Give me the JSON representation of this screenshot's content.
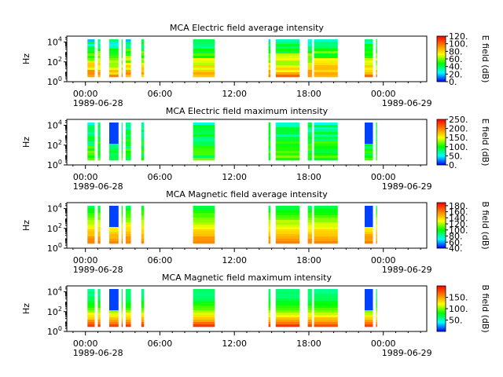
{
  "colors": {
    "background": "#ffffff",
    "axis": "#000000"
  },
  "colormap": [
    "#ff0000",
    "#ff8000",
    "#ffff00",
    "#00ff00",
    "#00ffff",
    "#0000ff"
  ],
  "chart_data": [
    {
      "type": "heatmap",
      "title": "MCA  Electric field average intensity",
      "ylabel": "Hz",
      "colorbar_label": "E field (dB)",
      "y_scale": "log",
      "y_tick_labels": [
        "10^0",
        "10^2",
        "10^4"
      ],
      "x_tick_labels": [
        "00:00",
        "06:00",
        "12:00",
        "18:00",
        "00:00"
      ],
      "x_date_start": "1989-06-28",
      "x_date_end": "1989-06-29",
      "colorbar_ticks": [
        "0.",
        "20.",
        "40.",
        "60.",
        "80.",
        "100.",
        "120."
      ],
      "clim": [
        0,
        120
      ],
      "segments": [
        {
          "start": "1989-06-28 00:10",
          "end": "1989-06-28 00:45"
        },
        {
          "start": "1989-06-28 01:00",
          "end": "1989-06-28 01:12"
        },
        {
          "start": "1989-06-28 01:55",
          "end": "1989-06-28 02:40"
        },
        {
          "start": "1989-06-28 02:55",
          "end": "1989-06-28 03:00"
        },
        {
          "start": "1989-06-28 03:15",
          "end": "1989-06-28 03:40"
        },
        {
          "start": "1989-06-28 04:30",
          "end": "1989-06-28 04:43"
        },
        {
          "start": "1989-06-28 08:40",
          "end": "1989-06-28 10:25"
        },
        {
          "start": "1989-06-28 14:45",
          "end": "1989-06-28 14:55"
        },
        {
          "start": "1989-06-28 15:20",
          "end": "1989-06-28 17:15"
        },
        {
          "start": "1989-06-28 17:55",
          "end": "1989-06-28 18:15"
        },
        {
          "start": "1989-06-28 18:25",
          "end": "1989-06-28 20:20"
        },
        {
          "start": "1989-06-28 22:30",
          "end": "1989-06-28 23:10"
        },
        {
          "start": "1989-06-28 23:25",
          "end": "1989-06-28 23:30"
        }
      ]
    },
    {
      "type": "heatmap",
      "title": "MCA  Electric field maximum intensity",
      "ylabel": "Hz",
      "colorbar_label": "E field (dB)",
      "y_scale": "log",
      "y_tick_labels": [
        "10^0",
        "10^2",
        "10^4"
      ],
      "x_tick_labels": [
        "00:00",
        "06:00",
        "12:00",
        "18:00",
        "00:00"
      ],
      "x_date_start": "1989-06-28",
      "x_date_end": "1989-06-29",
      "colorbar_ticks": [
        "0.",
        "50.",
        "100.",
        "150.",
        "200.",
        "250."
      ],
      "clim": [
        0,
        250
      ],
      "segments": [
        {
          "start": "1989-06-28 00:10",
          "end": "1989-06-28 00:45"
        },
        {
          "start": "1989-06-28 01:00",
          "end": "1989-06-28 01:12"
        },
        {
          "start": "1989-06-28 01:55",
          "end": "1989-06-28 02:40"
        },
        {
          "start": "1989-06-28 02:55",
          "end": "1989-06-28 03:00"
        },
        {
          "start": "1989-06-28 03:15",
          "end": "1989-06-28 03:40"
        },
        {
          "start": "1989-06-28 04:30",
          "end": "1989-06-28 04:43"
        },
        {
          "start": "1989-06-28 08:40",
          "end": "1989-06-28 10:25"
        },
        {
          "start": "1989-06-28 14:45",
          "end": "1989-06-28 14:55"
        },
        {
          "start": "1989-06-28 15:20",
          "end": "1989-06-28 17:15"
        },
        {
          "start": "1989-06-28 17:55",
          "end": "1989-06-28 18:15"
        },
        {
          "start": "1989-06-28 18:25",
          "end": "1989-06-28 20:20"
        },
        {
          "start": "1989-06-28 22:30",
          "end": "1989-06-28 23:10"
        },
        {
          "start": "1989-06-28 23:25",
          "end": "1989-06-28 23:30"
        }
      ]
    },
    {
      "type": "heatmap",
      "title": "MCA  Magnetic field average intensity",
      "ylabel": "Hz",
      "colorbar_label": "B field (dB)",
      "y_scale": "log",
      "y_tick_labels": [
        "10^0",
        "10^2",
        "10^4"
      ],
      "x_tick_labels": [
        "00:00",
        "06:00",
        "12:00",
        "18:00",
        "00:00"
      ],
      "x_date_start": "1989-06-28",
      "x_date_end": "1989-06-29",
      "colorbar_ticks": [
        "40.",
        "60.",
        "80.",
        "100.",
        "120.",
        "140.",
        "160.",
        "180."
      ],
      "clim": [
        40,
        190
      ],
      "segments": [
        {
          "start": "1989-06-28 00:10",
          "end": "1989-06-28 00:45"
        },
        {
          "start": "1989-06-28 01:00",
          "end": "1989-06-28 01:12"
        },
        {
          "start": "1989-06-28 01:55",
          "end": "1989-06-28 02:40"
        },
        {
          "start": "1989-06-28 02:55",
          "end": "1989-06-28 03:00"
        },
        {
          "start": "1989-06-28 03:15",
          "end": "1989-06-28 03:40"
        },
        {
          "start": "1989-06-28 04:30",
          "end": "1989-06-28 04:43"
        },
        {
          "start": "1989-06-28 08:40",
          "end": "1989-06-28 10:25"
        },
        {
          "start": "1989-06-28 14:45",
          "end": "1989-06-28 14:55"
        },
        {
          "start": "1989-06-28 15:20",
          "end": "1989-06-28 17:15"
        },
        {
          "start": "1989-06-28 17:55",
          "end": "1989-06-28 18:15"
        },
        {
          "start": "1989-06-28 18:25",
          "end": "1989-06-28 20:20"
        },
        {
          "start": "1989-06-28 22:30",
          "end": "1989-06-28 23:10"
        },
        {
          "start": "1989-06-28 23:25",
          "end": "1989-06-28 23:30"
        }
      ]
    },
    {
      "type": "heatmap",
      "title": "MCA  Magnetic field maximum intensity",
      "ylabel": "Hz",
      "colorbar_label": "B field (dB)",
      "y_scale": "log",
      "y_tick_labels": [
        "10^0",
        "10^2",
        "10^4"
      ],
      "x_tick_labels": [
        "00:00",
        "06:00",
        "12:00",
        "18:00",
        "00:00"
      ],
      "x_date_start": "1989-06-28",
      "x_date_end": "1989-06-29",
      "colorbar_ticks": [
        "50.",
        "100.",
        "150."
      ],
      "clim": [
        0,
        200
      ],
      "segments": [
        {
          "start": "1989-06-28 00:10",
          "end": "1989-06-28 00:45"
        },
        {
          "start": "1989-06-28 01:00",
          "end": "1989-06-28 01:12"
        },
        {
          "start": "1989-06-28 01:55",
          "end": "1989-06-28 02:40"
        },
        {
          "start": "1989-06-28 02:55",
          "end": "1989-06-28 03:00"
        },
        {
          "start": "1989-06-28 03:15",
          "end": "1989-06-28 03:40"
        },
        {
          "start": "1989-06-28 04:30",
          "end": "1989-06-28 04:43"
        },
        {
          "start": "1989-06-28 08:40",
          "end": "1989-06-28 10:25"
        },
        {
          "start": "1989-06-28 14:45",
          "end": "1989-06-28 14:55"
        },
        {
          "start": "1989-06-28 15:20",
          "end": "1989-06-28 17:15"
        },
        {
          "start": "1989-06-28 17:55",
          "end": "1989-06-28 18:15"
        },
        {
          "start": "1989-06-28 18:25",
          "end": "1989-06-28 20:20"
        },
        {
          "start": "1989-06-28 22:30",
          "end": "1989-06-28 23:10"
        },
        {
          "start": "1989-06-28 23:25",
          "end": "1989-06-28 23:30"
        }
      ]
    }
  ]
}
